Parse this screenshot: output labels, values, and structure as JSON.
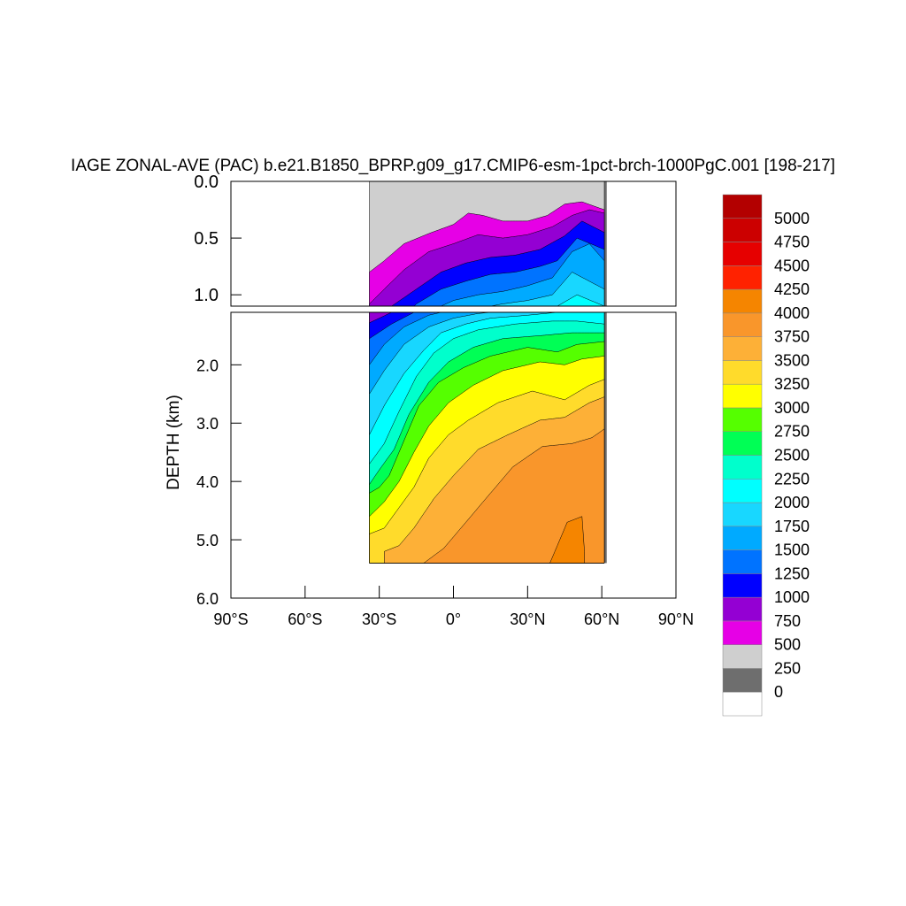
{
  "chart_data": {
    "type": "heatmap",
    "title": "IAGE ZONAL-AVE (PAC) b.e21.B1850_BPRP.g09_g17.CMIP6-esm-1pct-brch-1000PgC.001 [198-217]",
    "ylabel": "DEPTH (km)",
    "xlabel": "",
    "xlim": [
      -90,
      90
    ],
    "x_ticks": [
      -90,
      -60,
      -30,
      0,
      30,
      60,
      90
    ],
    "x_tick_labels": [
      "90°S",
      "60°S",
      "30°S",
      "0°",
      "30°N",
      "60°N",
      "90°N"
    ],
    "upper_panel": {
      "ylim": [
        0.0,
        1.1
      ],
      "y_ticks": [
        0.0,
        0.5,
        1.0
      ],
      "y_tick_labels": [
        "0.0",
        "0.5",
        "1.0"
      ]
    },
    "lower_panel": {
      "ylim": [
        1.1,
        6.0
      ],
      "y_ticks": [
        2.0,
        3.0,
        4.0,
        5.0,
        6.0
      ],
      "y_tick_labels": [
        "2.0",
        "3.0",
        "4.0",
        "5.0",
        "6.0"
      ]
    },
    "levels": [
      0,
      250,
      500,
      750,
      1000,
      1250,
      1500,
      1750,
      2000,
      2250,
      2500,
      2750,
      3000,
      3250,
      3500,
      3750,
      4000,
      4250,
      4500,
      4750,
      5000
    ],
    "level_labels": [
      "0",
      "250",
      "500",
      "750",
      "1000",
      "1250",
      "1500",
      "1750",
      "2000",
      "2250",
      "2500",
      "2750",
      "3000",
      "3250",
      "3500",
      "3750",
      "4000",
      "4250",
      "4500",
      "4750",
      "5000"
    ],
    "colors": [
      "#ffffff",
      "#6e6e6e",
      "#cfcfcf",
      "#e600e6",
      "#9400d3",
      "#0000ff",
      "#0073ff",
      "#00aaff",
      "#18d7ff",
      "#00ffff",
      "#00ffcc",
      "#00ff55",
      "#55ff00",
      "#ffff00",
      "#ffdb2b",
      "#fdb037",
      "#f9962b",
      "#f58500",
      "#ff2200",
      "#e60000",
      "#cc0000",
      "#b30000"
    ],
    "data_extent": {
      "lat_min": -34,
      "lat_max": 62,
      "max_depth_km": 5.4
    },
    "approx_isolines": [
      {
        "level": 250,
        "points": [
          [
            -34,
            0.0
          ],
          [
            61,
            0.0
          ]
        ]
      },
      {
        "level": 500,
        "points": [
          [
            -34,
            0.8
          ],
          [
            -28,
            0.7
          ],
          [
            -20,
            0.55
          ],
          [
            -10,
            0.46
          ],
          [
            0,
            0.38
          ],
          [
            6,
            0.28
          ],
          [
            12,
            0.3
          ],
          [
            20,
            0.35
          ],
          [
            30,
            0.35
          ],
          [
            38,
            0.3
          ],
          [
            45,
            0.2
          ],
          [
            52,
            0.18
          ],
          [
            61,
            0.25
          ]
        ]
      },
      {
        "level": 750,
        "points": [
          [
            -34,
            1.08
          ],
          [
            -28,
            0.95
          ],
          [
            -20,
            0.78
          ],
          [
            -10,
            0.62
          ],
          [
            0,
            0.55
          ],
          [
            10,
            0.47
          ],
          [
            20,
            0.5
          ],
          [
            30,
            0.47
          ],
          [
            40,
            0.4
          ],
          [
            48,
            0.3
          ],
          [
            55,
            0.25
          ],
          [
            61,
            0.28
          ]
        ]
      },
      {
        "level": 1000,
        "points": [
          [
            -34,
            1.28
          ],
          [
            -25,
            1.1
          ],
          [
            -15,
            0.95
          ],
          [
            -5,
            0.8
          ],
          [
            5,
            0.72
          ],
          [
            15,
            0.67
          ],
          [
            25,
            0.65
          ],
          [
            35,
            0.6
          ],
          [
            45,
            0.48
          ],
          [
            52,
            0.35
          ],
          [
            61,
            0.45
          ]
        ]
      },
      {
        "level": 1250,
        "points": [
          [
            -34,
            1.55
          ],
          [
            -25,
            1.3
          ],
          [
            -15,
            1.08
          ],
          [
            -5,
            0.95
          ],
          [
            5,
            0.88
          ],
          [
            15,
            0.82
          ],
          [
            25,
            0.8
          ],
          [
            35,
            0.75
          ],
          [
            42,
            0.7
          ],
          [
            50,
            0.5
          ],
          [
            61,
            0.6
          ]
        ]
      },
      {
        "level": 1500,
        "points": [
          [
            -34,
            2.0
          ],
          [
            -28,
            1.65
          ],
          [
            -20,
            1.35
          ],
          [
            -10,
            1.15
          ],
          [
            0,
            1.05
          ],
          [
            10,
            1.0
          ],
          [
            20,
            0.97
          ],
          [
            30,
            0.92
          ],
          [
            40,
            0.85
          ],
          [
            48,
            0.62
          ],
          [
            55,
            0.55
          ],
          [
            61,
            0.7
          ]
        ]
      },
      {
        "level": 1750,
        "points": [
          [
            -34,
            2.5
          ],
          [
            -28,
            2.1
          ],
          [
            -20,
            1.65
          ],
          [
            -10,
            1.35
          ],
          [
            0,
            1.2
          ],
          [
            10,
            1.12
          ],
          [
            20,
            1.08
          ],
          [
            30,
            1.05
          ],
          [
            40,
            1.0
          ],
          [
            48,
            0.8
          ],
          [
            61,
            0.95
          ]
        ]
      },
      {
        "level": 2000,
        "points": [
          [
            -34,
            3.2
          ],
          [
            -28,
            2.7
          ],
          [
            -20,
            2.15
          ],
          [
            -12,
            1.75
          ],
          [
            -5,
            1.45
          ],
          [
            5,
            1.3
          ],
          [
            15,
            1.2
          ],
          [
            30,
            1.15
          ],
          [
            42,
            1.1
          ],
          [
            50,
            1.0
          ],
          [
            61,
            1.1
          ]
        ]
      },
      {
        "level": 2250,
        "points": [
          [
            -34,
            3.7
          ],
          [
            -28,
            3.35
          ],
          [
            -22,
            2.8
          ],
          [
            -15,
            2.2
          ],
          [
            -8,
            1.8
          ],
          [
            0,
            1.55
          ],
          [
            10,
            1.4
          ],
          [
            25,
            1.3
          ],
          [
            40,
            1.25
          ],
          [
            50,
            1.25
          ],
          [
            61,
            1.3
          ]
        ]
      },
      {
        "level": 2500,
        "points": [
          [
            -34,
            4.05
          ],
          [
            -30,
            3.8
          ],
          [
            -24,
            3.45
          ],
          [
            -18,
            2.85
          ],
          [
            -10,
            2.3
          ],
          [
            -2,
            1.95
          ],
          [
            8,
            1.7
          ],
          [
            20,
            1.55
          ],
          [
            35,
            1.5
          ],
          [
            48,
            1.45
          ],
          [
            61,
            1.45
          ]
        ]
      },
      {
        "level": 2750,
        "points": [
          [
            -34,
            4.2
          ],
          [
            -30,
            4.1
          ],
          [
            -26,
            3.9
          ],
          [
            -20,
            3.3
          ],
          [
            -14,
            2.7
          ],
          [
            -6,
            2.3
          ],
          [
            4,
            2.05
          ],
          [
            15,
            1.85
          ],
          [
            30,
            1.7
          ],
          [
            42,
            1.78
          ],
          [
            50,
            1.65
          ],
          [
            61,
            1.6
          ]
        ]
      },
      {
        "level": 3000,
        "points": [
          [
            -34,
            4.6
          ],
          [
            -28,
            4.35
          ],
          [
            -22,
            4.0
          ],
          [
            -16,
            3.5
          ],
          [
            -10,
            3.05
          ],
          [
            -2,
            2.65
          ],
          [
            8,
            2.35
          ],
          [
            20,
            2.1
          ],
          [
            35,
            1.95
          ],
          [
            45,
            2.0
          ],
          [
            52,
            1.9
          ],
          [
            61,
            1.85
          ]
        ]
      },
      {
        "level": 3250,
        "points": [
          [
            -34,
            4.9
          ],
          [
            -28,
            4.8
          ],
          [
            -22,
            4.45
          ],
          [
            -16,
            4.1
          ],
          [
            -10,
            3.6
          ],
          [
            -2,
            3.2
          ],
          [
            6,
            2.95
          ],
          [
            18,
            2.65
          ],
          [
            32,
            2.45
          ],
          [
            45,
            2.6
          ],
          [
            55,
            2.35
          ],
          [
            61,
            2.25
          ]
        ]
      },
      {
        "level": 3500,
        "points": [
          [
            -28,
            5.2
          ],
          [
            -22,
            5.1
          ],
          [
            -16,
            4.8
          ],
          [
            -8,
            4.3
          ],
          [
            0,
            3.9
          ],
          [
            10,
            3.45
          ],
          [
            22,
            3.2
          ],
          [
            35,
            2.95
          ],
          [
            45,
            2.9
          ],
          [
            55,
            2.65
          ],
          [
            61,
            2.55
          ]
        ]
      },
      {
        "level": 3750,
        "points": [
          [
            -12,
            5.4
          ],
          [
            -4,
            5.15
          ],
          [
            4,
            4.75
          ],
          [
            14,
            4.25
          ],
          [
            24,
            3.75
          ],
          [
            36,
            3.4
          ],
          [
            48,
            3.35
          ],
          [
            56,
            3.25
          ],
          [
            61,
            3.1
          ]
        ]
      },
      {
        "level": 4000,
        "points": [
          [
            39,
            5.4
          ],
          [
            42,
            5.1
          ],
          [
            46,
            4.7
          ],
          [
            52,
            4.6
          ],
          [
            53,
            5.2
          ]
        ]
      }
    ]
  }
}
